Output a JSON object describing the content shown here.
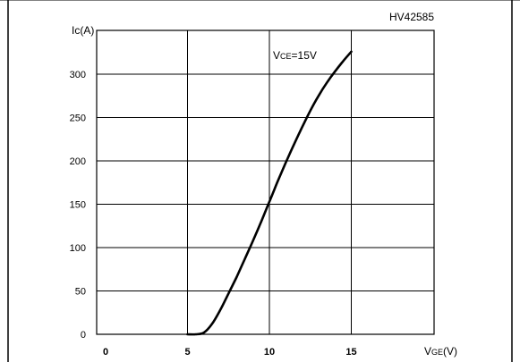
{
  "chart_data": {
    "type": "line",
    "title": "HV42585",
    "annotation": {
      "main": "V",
      "sub": "CE",
      "rest": "=15V"
    },
    "ylabel": {
      "main": "Ic",
      "rest": "(A)"
    },
    "xlabel": {
      "main": "V",
      "sub": "GE",
      "rest": "(V)"
    },
    "xlim": [
      0,
      20
    ],
    "ylim": [
      0,
      340
    ],
    "xticks": [
      0,
      5,
      10,
      15
    ],
    "xtick_labels": [
      "0",
      "5",
      "10",
      "15"
    ],
    "yticks": [
      0,
      50,
      100,
      150,
      200,
      250,
      300
    ],
    "ytick_labels": [
      "0",
      "50",
      "100",
      "150",
      "200",
      "250",
      "300"
    ],
    "grid": true,
    "series": [
      {
        "x": [
          5.0,
          5.5,
          6.0,
          6.5,
          7.0,
          7.5,
          8.0,
          8.5,
          9.0,
          9.5,
          10.0,
          10.5,
          11.0,
          11.5,
          12.0,
          12.5,
          13.0,
          13.5,
          14.0,
          14.5,
          15.0
        ],
        "y": [
          0,
          0,
          2,
          12,
          28,
          47,
          66,
          87,
          108,
          130,
          153,
          176,
          198,
          219,
          239,
          258,
          275,
          290,
          303,
          315,
          326
        ]
      }
    ],
    "colors": {
      "line": "#000000",
      "grid": "#000000",
      "frame": "#000000"
    }
  }
}
